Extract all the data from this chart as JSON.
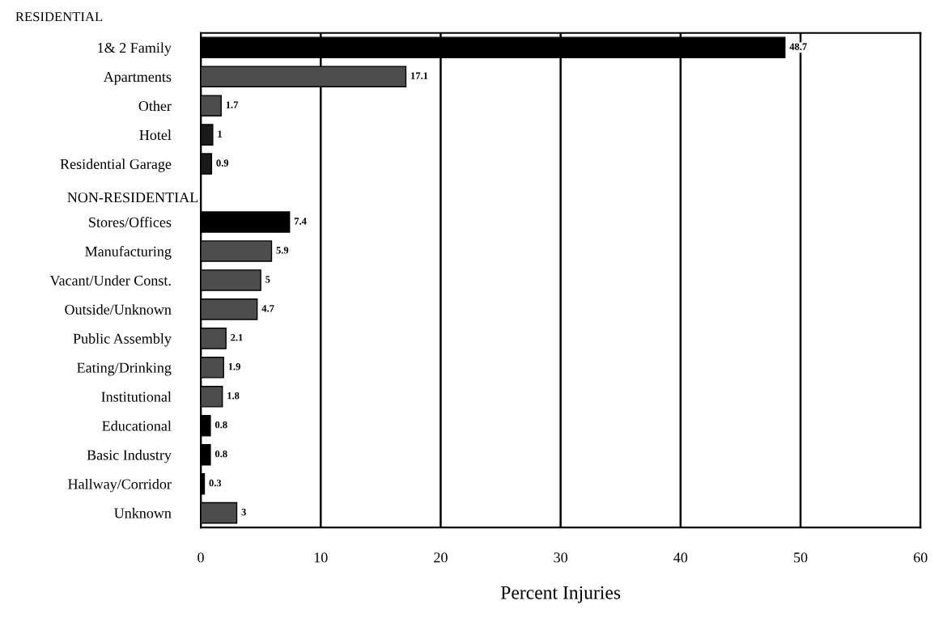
{
  "chart_data": {
    "type": "bar",
    "orientation": "horizontal",
    "xlabel": "Percent Injuries",
    "categories": [
      "1& 2 Family",
      "Apartments",
      "Other",
      "Hotel",
      "Residential Garage",
      null,
      "Stores/Offices",
      "Manufacturing",
      "Vacant/Under Const.",
      "Outside/Unknown",
      "Public Assembly",
      "Eating/Drinking",
      "Institutional",
      "Educational",
      "Basic Industry",
      "Hallway/Corridor",
      "Unknown"
    ],
    "values": [
      48.7,
      17.1,
      1.7,
      1,
      0.9,
      null,
      7.4,
      5.9,
      5,
      4.7,
      2.1,
      1.9,
      1.8,
      0.8,
      0.8,
      0.3,
      3
    ],
    "colors": [
      "#000000",
      "#4d4d4d",
      "#4d4d4d",
      "#1a1a1a",
      "#1a1a1a",
      "#000000",
      "#000000",
      "#4d4d4d",
      "#4d4d4d",
      "#4d4d4d",
      "#4d4d4d",
      "#4d4d4d",
      "#4d4d4d",
      "#000000",
      "#000000",
      "#000000",
      "#4d4d4d"
    ],
    "annotations": [
      "RESIDENTIAL",
      "NON-RESIDENTIAL"
    ],
    "xlim": [
      0,
      60
    ],
    "xticks": [
      0,
      10,
      20,
      30,
      40,
      50,
      60
    ],
    "grid": "x",
    "data_labels": true
  }
}
